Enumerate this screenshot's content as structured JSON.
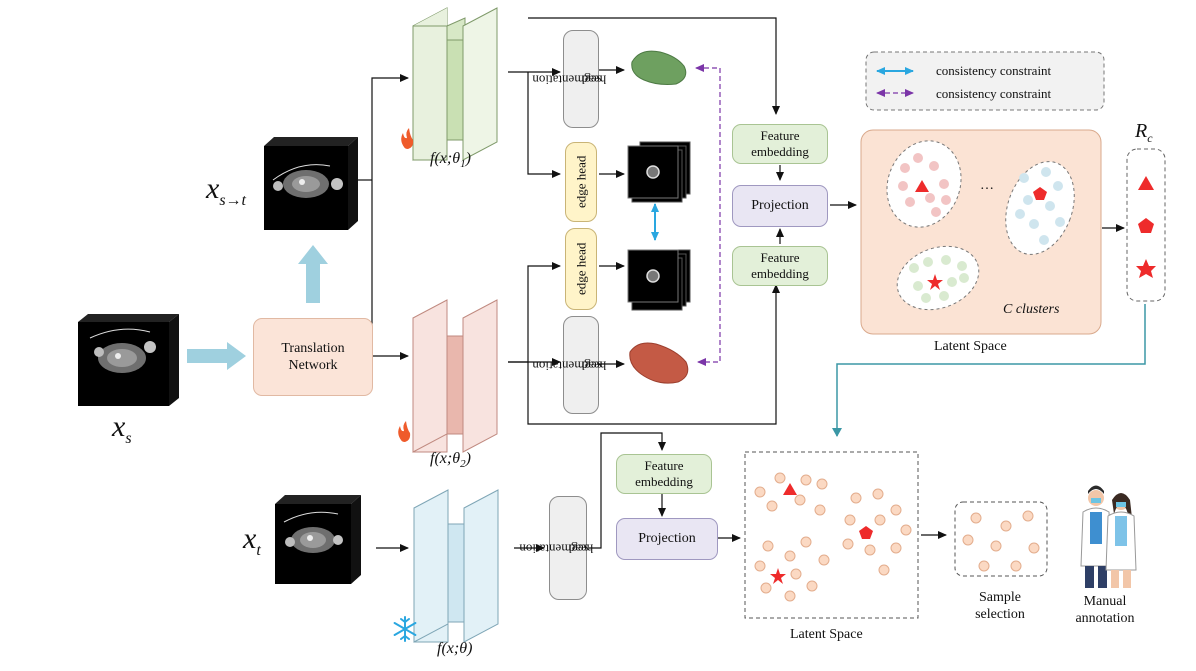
{
  "inputs": {
    "source": {
      "symbol": "x",
      "subscript": "s"
    },
    "translated": {
      "symbol": "x",
      "subscript": "s→t"
    },
    "target": {
      "symbol": "x",
      "subscript": "t"
    }
  },
  "translation_network": {
    "line1": "Translation",
    "line2": "Network"
  },
  "networks": {
    "f1": {
      "label": "f(x;θ",
      "sub": "1",
      "close": ")"
    },
    "f2": {
      "label": "f(x;θ",
      "sub": "2",
      "close": ")"
    },
    "f_frozen": {
      "label": "f(x;θ)"
    }
  },
  "heads": {
    "segmentation": [
      "segmentation",
      "head"
    ],
    "edge": "edge head"
  },
  "feature_embedding": [
    "Feature",
    "embedding"
  ],
  "projection": "Projection",
  "legend": {
    "item1": "consistency constraint",
    "item2": "consistency constraint"
  },
  "cluster_panel": {
    "ellipsis": "…",
    "caption": "C clusters",
    "title": "Latent Space"
  },
  "prototypes": {
    "symbol": "R",
    "subscript": "c"
  },
  "bottom": {
    "latent_title": "Latent Space",
    "sample_selection": [
      "Sample",
      "selection"
    ],
    "manual_annotation": [
      "Manual",
      "annotation"
    ]
  },
  "icons": {
    "flame": "flame-icon",
    "snowflake": "snowflake-icon",
    "doctors": "doctors-icon"
  },
  "colors": {
    "green_net": "#dfeccf",
    "red_net": "#f0c2bb",
    "blue_net": "#d6ecf4",
    "seg_green": "#6ea060",
    "seg_red": "#c45a45",
    "point": "#f7cfb6",
    "cyan_arrow": "#2aa7e0",
    "purple_arrow": "#7b35a8",
    "teal_line": "#3b97a5",
    "marker_red": "#ee2b2b"
  }
}
